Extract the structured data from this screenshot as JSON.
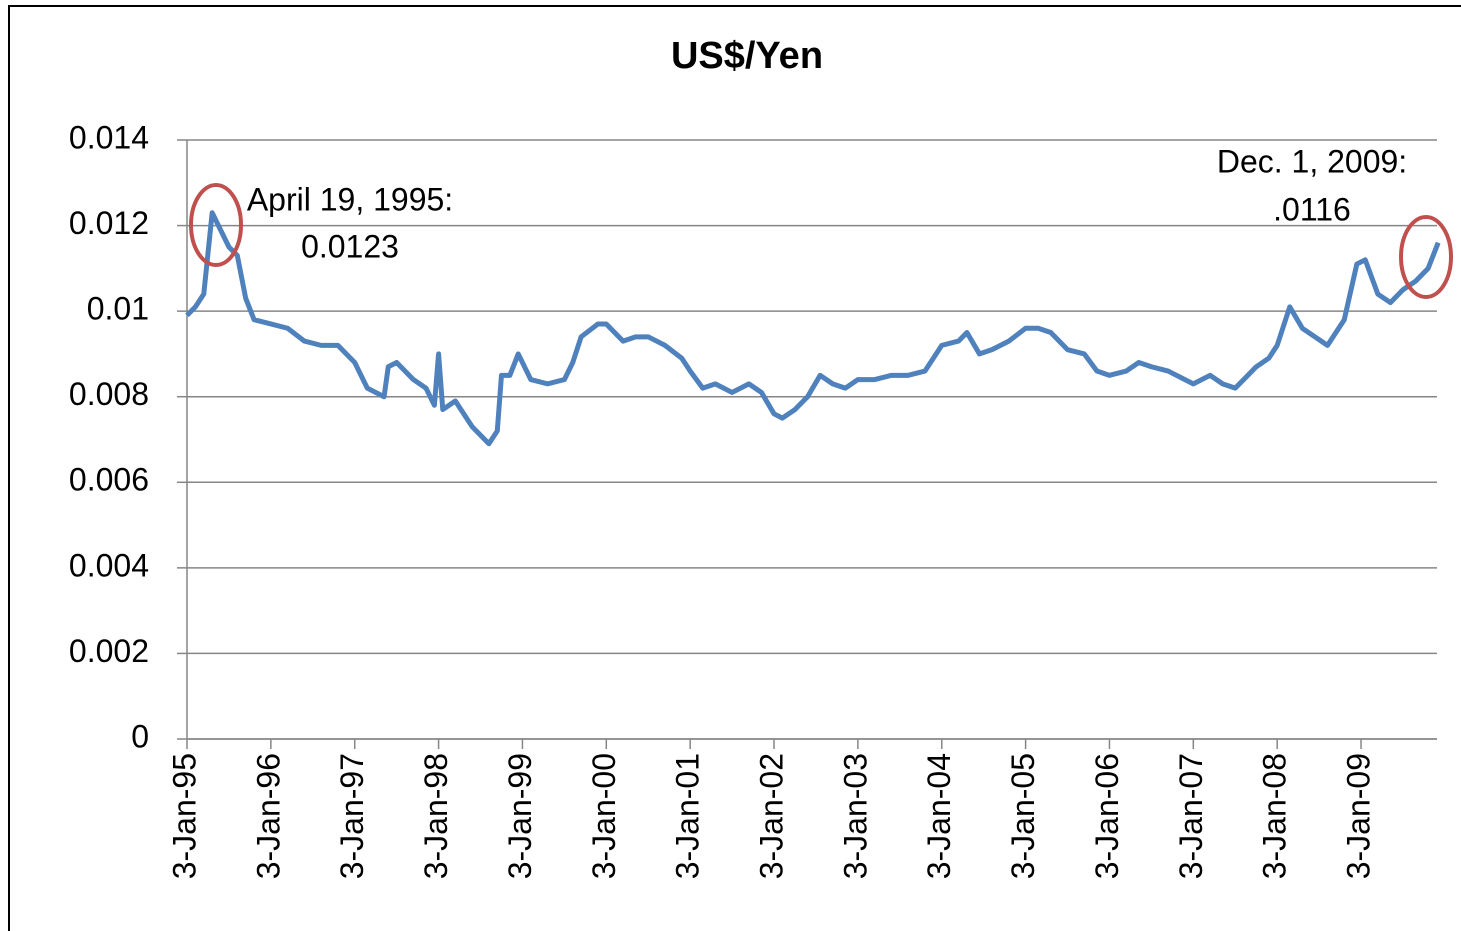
{
  "chart_data": {
    "type": "line",
    "title": "US$/Yen",
    "annotations": [
      {
        "lines": [
          "April 19, 1995:",
          "0.0123"
        ]
      },
      {
        "lines": [
          "Dec. 1, 2009:",
          ".0116"
        ]
      }
    ],
    "xlim": [
      1995,
      2009.92
    ],
    "xticks": [
      {
        "value": 1995,
        "label": "3-Jan-95"
      },
      {
        "value": 1996,
        "label": "3-Jan-96"
      },
      {
        "value": 1997,
        "label": "3-Jan-97"
      },
      {
        "value": 1998,
        "label": "3-Jan-98"
      },
      {
        "value": 1999,
        "label": "3-Jan-99"
      },
      {
        "value": 2000,
        "label": "3-Jan-00"
      },
      {
        "value": 2001,
        "label": "3-Jan-01"
      },
      {
        "value": 2002,
        "label": "3-Jan-02"
      },
      {
        "value": 2003,
        "label": "3-Jan-03"
      },
      {
        "value": 2004,
        "label": "3-Jan-04"
      },
      {
        "value": 2005,
        "label": "3-Jan-05"
      },
      {
        "value": 2006,
        "label": "3-Jan-06"
      },
      {
        "value": 2007,
        "label": "3-Jan-07"
      },
      {
        "value": 2008,
        "label": "3-Jan-08"
      },
      {
        "value": 2009,
        "label": "3-Jan-09"
      }
    ],
    "ylim": [
      0,
      0.014
    ],
    "yticks": [
      0,
      0.002,
      0.004,
      0.006,
      0.008,
      0.01,
      0.012,
      0.014
    ],
    "grid": true,
    "x": [
      1995.0,
      1995.1,
      1995.2,
      1995.3,
      1995.4,
      1995.5,
      1995.6,
      1995.7,
      1995.8,
      1996.0,
      1996.2,
      1996.4,
      1996.6,
      1996.8,
      1997.0,
      1997.15,
      1997.35,
      1997.4,
      1997.5,
      1997.7,
      1997.85,
      1997.95,
      1998.0,
      1998.05,
      1998.2,
      1998.4,
      1998.6,
      1998.7,
      1998.75,
      1998.85,
      1998.95,
      1999.1,
      1999.3,
      1999.5,
      1999.6,
      1999.7,
      1999.9,
      2000.0,
      2000.2,
      2000.35,
      2000.5,
      2000.7,
      2000.9,
      2001.0,
      2001.15,
      2001.3,
      2001.5,
      2001.7,
      2001.85,
      2002.0,
      2002.1,
      2002.25,
      2002.4,
      2002.55,
      2002.7,
      2002.85,
      2003.0,
      2003.2,
      2003.4,
      2003.6,
      2003.8,
      2004.0,
      2004.2,
      2004.3,
      2004.45,
      2004.6,
      2004.8,
      2005.0,
      2005.15,
      2005.3,
      2005.5,
      2005.7,
      2005.85,
      2006.0,
      2006.2,
      2006.35,
      2006.5,
      2006.7,
      2006.9,
      2007.0,
      2007.2,
      2007.35,
      2007.5,
      2007.6,
      2007.75,
      2007.9,
      2008.0,
      2008.15,
      2008.3,
      2008.45,
      2008.6,
      2008.8,
      2008.95,
      2009.05,
      2009.2,
      2009.35,
      2009.5,
      2009.65,
      2009.8,
      2009.92
    ],
    "series": [
      {
        "name": "US$/Yen",
        "color": "#4f81bd",
        "values": [
          0.0099,
          0.0101,
          0.0104,
          0.0123,
          0.0119,
          0.0115,
          0.0113,
          0.0103,
          0.0098,
          0.0097,
          0.0096,
          0.0093,
          0.0092,
          0.0092,
          0.0088,
          0.0082,
          0.008,
          0.0087,
          0.0088,
          0.0084,
          0.0082,
          0.0078,
          0.009,
          0.0077,
          0.0079,
          0.0073,
          0.0069,
          0.0072,
          0.0085,
          0.0085,
          0.009,
          0.0084,
          0.0083,
          0.0084,
          0.0088,
          0.0094,
          0.0097,
          0.0097,
          0.0093,
          0.0094,
          0.0094,
          0.0092,
          0.0089,
          0.0086,
          0.0082,
          0.0083,
          0.0081,
          0.0083,
          0.0081,
          0.0076,
          0.0075,
          0.0077,
          0.008,
          0.0085,
          0.0083,
          0.0082,
          0.0084,
          0.0084,
          0.0085,
          0.0085,
          0.0086,
          0.0092,
          0.0093,
          0.0095,
          0.009,
          0.0091,
          0.0093,
          0.0096,
          0.0096,
          0.0095,
          0.0091,
          0.009,
          0.0086,
          0.0085,
          0.0086,
          0.0088,
          0.0087,
          0.0086,
          0.0084,
          0.0083,
          0.0085,
          0.0083,
          0.0082,
          0.0084,
          0.0087,
          0.0089,
          0.0092,
          0.0101,
          0.0096,
          0.0094,
          0.0092,
          0.0098,
          0.0111,
          0.0112,
          0.0104,
          0.0102,
          0.0105,
          0.0107,
          0.011,
          0.0116
        ]
      }
    ]
  }
}
